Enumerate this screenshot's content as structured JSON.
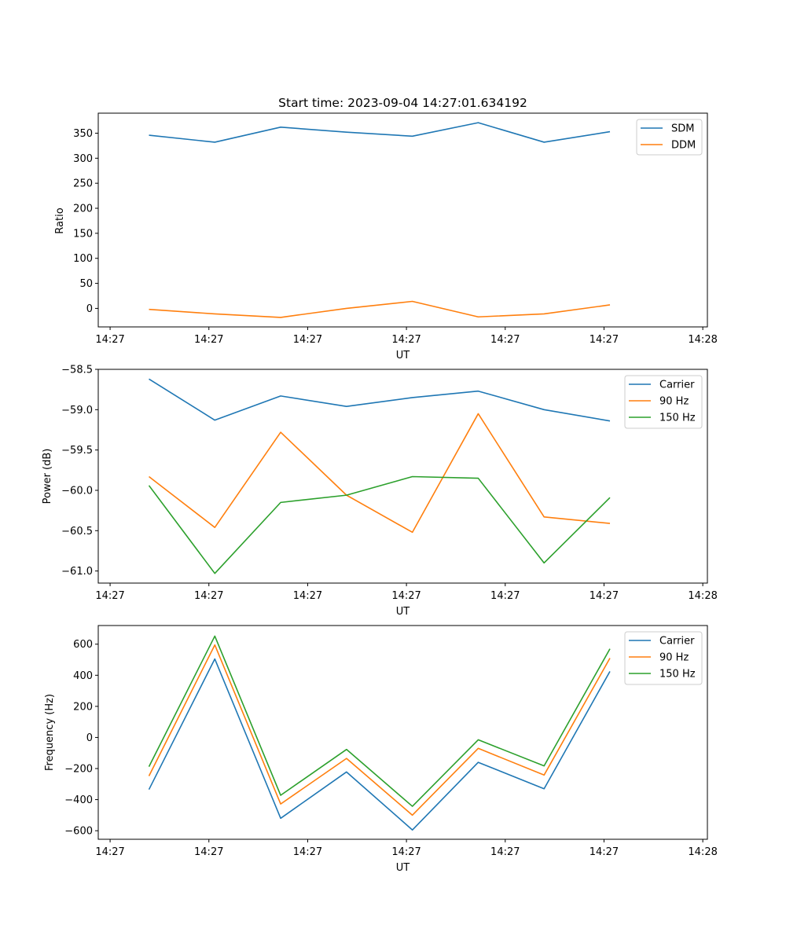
{
  "colors": {
    "c0": "#1f77b4",
    "c1": "#ff7f0e",
    "c2": "#2ca02c"
  },
  "chart_data": [
    {
      "type": "line",
      "title": "Start time: 2023-09-04 14:27:01.634192",
      "xlabel": "UT",
      "ylabel": "Ratio",
      "xlim": [
        -0.77,
        8.48
      ],
      "ylim": [
        -37,
        390
      ],
      "x_ticks": [
        {
          "value": -0.59,
          "label": "14:27"
        },
        {
          "value": 0.91,
          "label": "14:27"
        },
        {
          "value": 2.41,
          "label": "14:27"
        },
        {
          "value": 3.91,
          "label": "14:27"
        },
        {
          "value": 5.41,
          "label": "14:27"
        },
        {
          "value": 6.91,
          "label": "14:27"
        },
        {
          "value": 8.41,
          "label": "14:28"
        }
      ],
      "y_ticks": [
        {
          "value": 0,
          "label": "0"
        },
        {
          "value": 50,
          "label": "50"
        },
        {
          "value": 100,
          "label": "100"
        },
        {
          "value": 150,
          "label": "150"
        },
        {
          "value": 200,
          "label": "200"
        },
        {
          "value": 250,
          "label": "250"
        },
        {
          "value": 300,
          "label": "300"
        },
        {
          "value": 350,
          "label": "350"
        }
      ],
      "x": [
        0,
        1,
        2,
        3,
        4,
        5,
        6,
        7
      ],
      "series": [
        {
          "name": "SDM",
          "color": "#1f77b4",
          "values": [
            346,
            332,
            362,
            352,
            344,
            371,
            332,
            353
          ]
        },
        {
          "name": "DDM",
          "color": "#ff7f0e",
          "values": [
            -2,
            -11,
            -18,
            0,
            14,
            -17,
            -11,
            7
          ]
        }
      ],
      "legend": "top-right"
    },
    {
      "type": "line",
      "title": "",
      "xlabel": "UT",
      "ylabel": "Power (dB)",
      "xlim": [
        -0.77,
        8.48
      ],
      "ylim": [
        -61.15,
        -58.5
      ],
      "x_ticks": [
        {
          "value": -0.59,
          "label": "14:27"
        },
        {
          "value": 0.91,
          "label": "14:27"
        },
        {
          "value": 2.41,
          "label": "14:27"
        },
        {
          "value": 3.91,
          "label": "14:27"
        },
        {
          "value": 5.41,
          "label": "14:27"
        },
        {
          "value": 6.91,
          "label": "14:27"
        },
        {
          "value": 8.41,
          "label": "14:28"
        }
      ],
      "y_ticks": [
        {
          "value": -61.0,
          "label": "−61.0"
        },
        {
          "value": -60.5,
          "label": "−60.5"
        },
        {
          "value": -60.0,
          "label": "−60.0"
        },
        {
          "value": -59.5,
          "label": "−59.5"
        },
        {
          "value": -59.0,
          "label": "−59.0"
        },
        {
          "value": -58.5,
          "label": "−58.5"
        }
      ],
      "x": [
        0,
        1,
        2,
        3,
        4,
        5,
        6,
        7
      ],
      "series": [
        {
          "name": "Carrier",
          "color": "#1f77b4",
          "values": [
            -58.62,
            -59.13,
            -58.83,
            -58.96,
            -58.85,
            -58.77,
            -59.0,
            -59.14
          ]
        },
        {
          "name": "90 Hz",
          "color": "#ff7f0e",
          "values": [
            -59.83,
            -60.46,
            -59.28,
            -60.06,
            -60.52,
            -59.05,
            -60.33,
            -60.41
          ]
        },
        {
          "name": "150 Hz",
          "color": "#2ca02c",
          "values": [
            -59.94,
            -61.03,
            -60.15,
            -60.06,
            -59.83,
            -59.85,
            -60.9,
            -60.09
          ]
        }
      ],
      "legend": "top-right"
    },
    {
      "type": "line",
      "title": "",
      "xlabel": "UT",
      "ylabel": "Frequency (Hz)",
      "xlim": [
        -0.77,
        8.48
      ],
      "ylim": [
        -655,
        720
      ],
      "x_ticks": [
        {
          "value": -0.59,
          "label": "14:27"
        },
        {
          "value": 0.91,
          "label": "14:27"
        },
        {
          "value": 2.41,
          "label": "14:27"
        },
        {
          "value": 3.91,
          "label": "14:27"
        },
        {
          "value": 5.41,
          "label": "14:27"
        },
        {
          "value": 6.91,
          "label": "14:27"
        },
        {
          "value": 8.41,
          "label": "14:28"
        }
      ],
      "y_ticks": [
        {
          "value": -600,
          "label": "−600"
        },
        {
          "value": -400,
          "label": "−400"
        },
        {
          "value": -200,
          "label": "−200"
        },
        {
          "value": 0,
          "label": "0"
        },
        {
          "value": 200,
          "label": "200"
        },
        {
          "value": 400,
          "label": "400"
        },
        {
          "value": 600,
          "label": "600"
        }
      ],
      "x": [
        0,
        1,
        2,
        3,
        4,
        5,
        6,
        7
      ],
      "series": [
        {
          "name": "Carrier",
          "color": "#1f77b4",
          "values": [
            -335,
            505,
            -520,
            -222,
            -595,
            -160,
            -330,
            425
          ]
        },
        {
          "name": "90 Hz",
          "color": "#ff7f0e",
          "values": [
            -248,
            595,
            -428,
            -135,
            -500,
            -70,
            -242,
            510
          ]
        },
        {
          "name": "150 Hz",
          "color": "#2ca02c",
          "values": [
            -188,
            652,
            -372,
            -77,
            -443,
            -15,
            -183,
            570
          ]
        }
      ],
      "legend": "top-right"
    }
  ]
}
